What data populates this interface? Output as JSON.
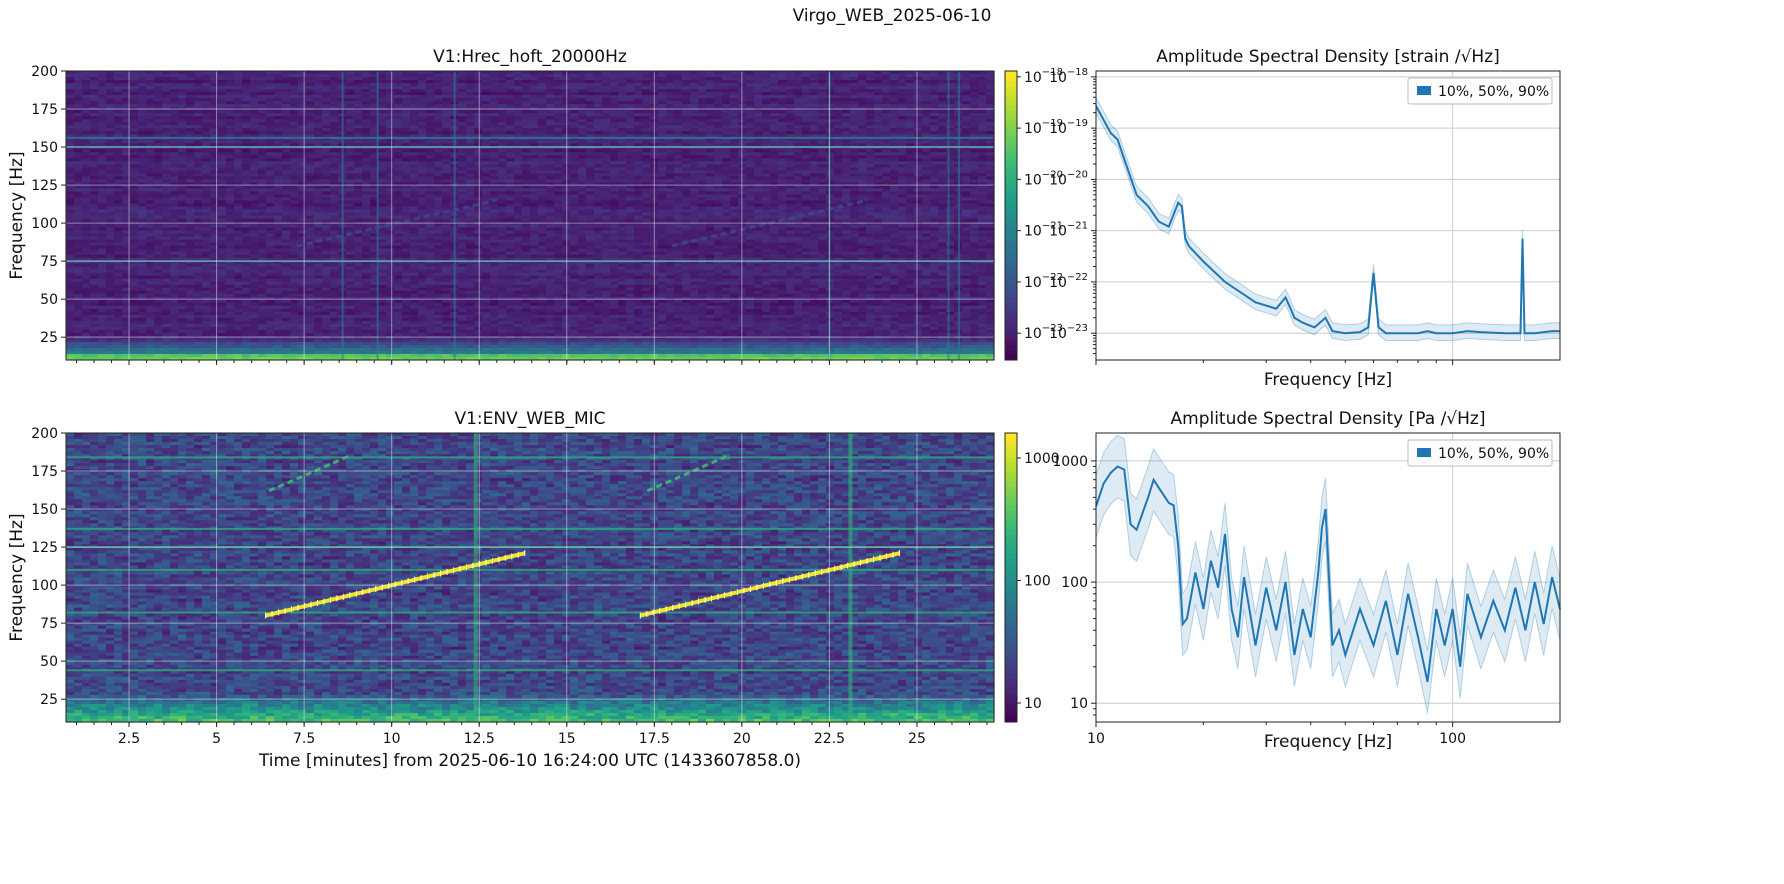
{
  "figure": {
    "title": "Virgo_WEB_2025-06-10"
  },
  "chart_data": [
    {
      "type": "heatmap",
      "title": "V1:Hrec_hoft_20000Hz",
      "ylabel": "Frequency [Hz]",
      "xlim": [
        0.7,
        27.2
      ],
      "ylim": [
        10,
        200
      ],
      "yticks": [
        25,
        50,
        75,
        100,
        125,
        150,
        175,
        200
      ],
      "xticks": [
        2.5,
        5,
        7.5,
        10,
        12.5,
        15,
        17.5,
        20,
        22.5,
        25
      ],
      "grid": true,
      "colormap": "viridis",
      "colorbar": {
        "scale": "log",
        "range": [
          3e-24,
          1.3e-18
        ],
        "ticks": [
          "10^-18",
          "10^-19",
          "10^-20",
          "10^-21",
          "10^-22",
          "10^-23"
        ]
      },
      "horizontal_lines_hz": [
        150,
        75,
        156
      ],
      "vertical_lines_min": [
        8.6,
        9.6,
        11.8,
        22.5,
        25.9,
        26.2
      ],
      "faint_chirps": [
        {
          "t0": 7.3,
          "t1": 13.0,
          "f0": 85,
          "f1": 115
        },
        {
          "t0": 18.0,
          "t1": 23.6,
          "f0": 85,
          "f1": 115
        }
      ]
    },
    {
      "type": "line",
      "title": "Amplitude Spectral Density [strain /√Hz]",
      "xlabel": "Frequency [Hz]",
      "xscale": "log",
      "yscale": "log",
      "xlim": [
        10,
        200
      ],
      "ylim": [
        3e-24,
        1.3e-18
      ],
      "yticks": [
        "10^-18",
        "10^-19",
        "10^-20",
        "10^-21",
        "10^-22",
        "10^-23"
      ],
      "grid": true,
      "legend": {
        "label": "10%, 50%, 90%",
        "position": "top-right"
      },
      "median": {
        "x": [
          10,
          11,
          11.5,
          12,
          13,
          14,
          15,
          16,
          17,
          17.4,
          17.8,
          18.2,
          20,
          23,
          28,
          32,
          34,
          35,
          36,
          38,
          41,
          44,
          46,
          50,
          55,
          58,
          60,
          62,
          65,
          70,
          75,
          80,
          85,
          90,
          100,
          110,
          120,
          140,
          155,
          157,
          159,
          170,
          190,
          200
        ],
        "y": [
          2.7e-19,
          8e-20,
          6e-20,
          2.5e-20,
          5e-21,
          3e-21,
          1.5e-21,
          1.2e-21,
          3.5e-21,
          3e-21,
          7e-22,
          5e-22,
          2.5e-22,
          1e-22,
          4e-23,
          3e-23,
          5e-23,
          3.2e-23,
          2e-23,
          1.6e-23,
          1.3e-23,
          2e-23,
          1.1e-23,
          1e-23,
          1.05e-23,
          1.3e-23,
          1.5e-22,
          1.3e-23,
          1e-23,
          1e-23,
          1e-23,
          1e-23,
          1.1e-23,
          1e-23,
          1e-23,
          1.1e-23,
          1.05e-23,
          1e-23,
          1e-23,
          7e-22,
          1e-23,
          1e-23,
          1.1e-23,
          1.1e-23
        ]
      }
    },
    {
      "type": "heatmap",
      "title": "V1:ENV_WEB_MIC",
      "xlabel": "Time [minutes] from 2025-06-10 16:24:00 UTC (1433607858.0)",
      "ylabel": "Frequency [Hz]",
      "xlim": [
        0.7,
        27.2
      ],
      "ylim": [
        10,
        200
      ],
      "yticks": [
        25,
        50,
        75,
        100,
        125,
        150,
        175,
        200
      ],
      "xticks": [
        2.5,
        5,
        7.5,
        10,
        12.5,
        15,
        17.5,
        20,
        22.5,
        25
      ],
      "grid": true,
      "colormap": "viridis",
      "colorbar": {
        "scale": "log",
        "range": [
          7,
          1600
        ],
        "ticks": [
          "1000",
          "100",
          "10"
        ]
      },
      "horizontal_lines_hz": [
        44,
        82,
        110,
        125,
        137,
        184
      ],
      "vertical_lines_min": [
        12.4,
        23.1
      ],
      "chirp_tracks": [
        {
          "t0": 6.4,
          "t1": 13.8,
          "f0": 80,
          "f1": 121
        },
        {
          "t0": 17.1,
          "t1": 24.5,
          "f0": 80,
          "f1": 121
        }
      ],
      "faint_chirps": [
        {
          "t0": 6.5,
          "t1": 8.8,
          "f0": 162,
          "f1": 185
        },
        {
          "t0": 17.3,
          "t1": 19.6,
          "f0": 162,
          "f1": 185
        }
      ]
    },
    {
      "type": "line",
      "title": "Amplitude Spectral Density [Pa /√Hz]",
      "xlabel": "Frequency [Hz]",
      "xscale": "log",
      "yscale": "log",
      "xlim": [
        10,
        200
      ],
      "ylim": [
        7,
        1700
      ],
      "xticks": [
        "10",
        "100"
      ],
      "yticks": [
        "1000",
        "100",
        "10"
      ],
      "grid": true,
      "legend": {
        "label": "10%, 50%, 90%",
        "position": "top-right"
      },
      "median": {
        "x": [
          10,
          10.5,
          11,
          11.5,
          12,
          12.5,
          13,
          14,
          14.5,
          15,
          16,
          16.5,
          17,
          17.5,
          18,
          19,
          20,
          21,
          22,
          23,
          24,
          25,
          26,
          28,
          30,
          32,
          34,
          36,
          38,
          40,
          42,
          43,
          44,
          46,
          48,
          50,
          55,
          60,
          65,
          70,
          75,
          80,
          85,
          90,
          95,
          100,
          105,
          110,
          120,
          130,
          140,
          150,
          160,
          170,
          180,
          190,
          200
        ],
        "y": [
          420,
          650,
          800,
          900,
          850,
          300,
          270,
          500,
          700,
          600,
          450,
          430,
          200,
          45,
          50,
          120,
          60,
          150,
          90,
          250,
          60,
          35,
          110,
          30,
          90,
          40,
          100,
          25,
          60,
          35,
          120,
          280,
          400,
          30,
          40,
          25,
          60,
          30,
          70,
          25,
          80,
          35,
          15,
          60,
          30,
          60,
          20,
          80,
          35,
          70,
          40,
          90,
          40,
          100,
          45,
          110,
          60
        ]
      }
    }
  ]
}
